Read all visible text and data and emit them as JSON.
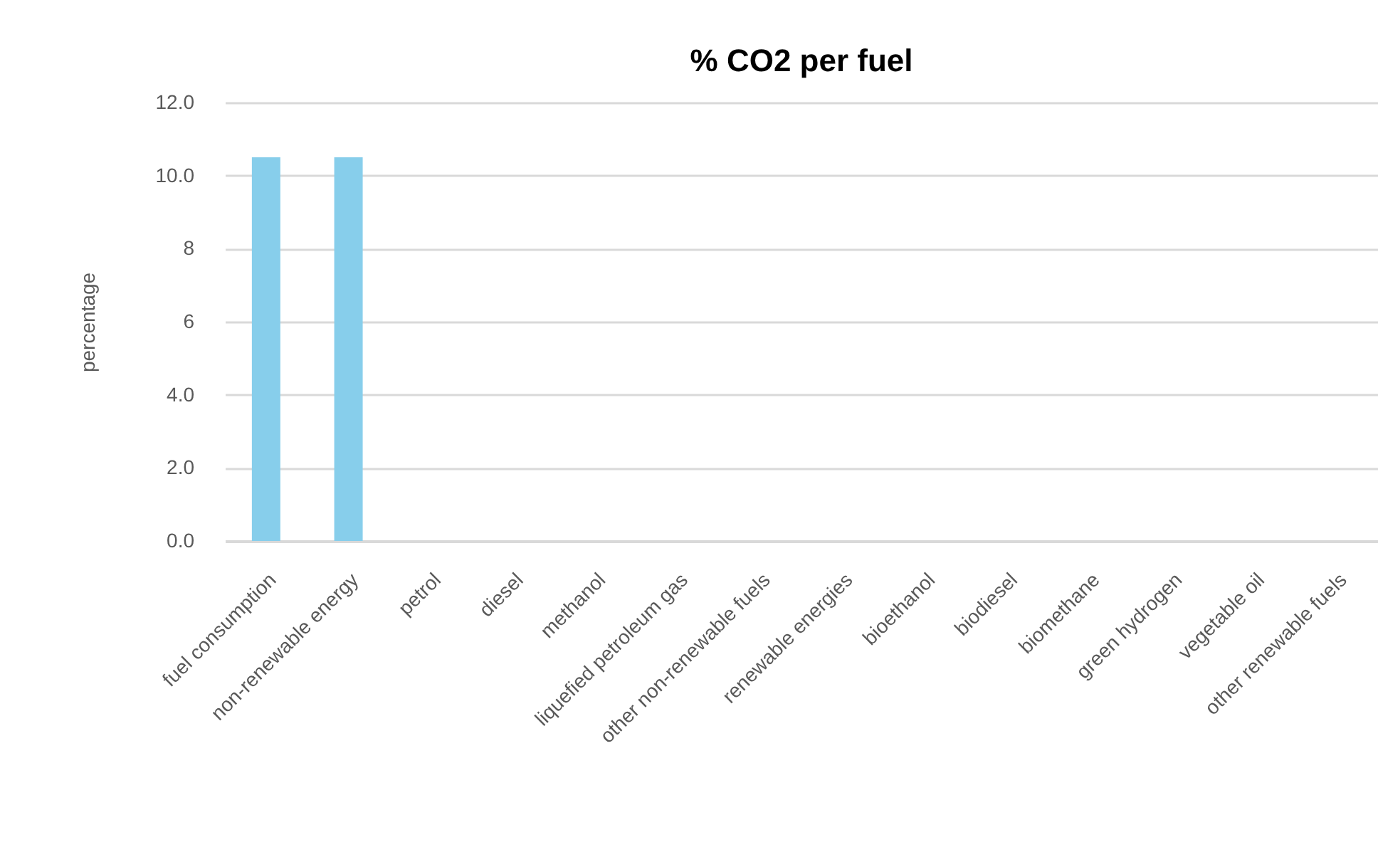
{
  "chart_data": {
    "type": "bar",
    "title": "% CO2 per fuel",
    "ylabel": "percentage",
    "categories": [
      "fuel consumption",
      "non-renewable energy",
      "petrol",
      "diesel",
      "methanol",
      "liquefied petroleum gas",
      "other non-renewable fuels",
      "renewable energies",
      "bioethanol",
      "biodiesel",
      "biomethane",
      "green hydrogen",
      "vegetable oil",
      "other renewable fuels"
    ],
    "values": [
      10.5,
      10.5,
      0,
      0,
      0,
      0,
      0,
      0,
      0,
      0,
      0,
      0,
      0,
      0
    ],
    "color": "#87ceeb",
    "ylim": [
      0,
      12
    ],
    "yticks": [
      {
        "value": 0,
        "label": "0.0"
      },
      {
        "value": 2,
        "label": "2.0"
      },
      {
        "value": 4,
        "label": "4.0"
      },
      6,
      8,
      {
        "value": 10,
        "label": "10.0"
      },
      {
        "value": 12,
        "label": "12.0"
      }
    ],
    "grid": "y"
  }
}
